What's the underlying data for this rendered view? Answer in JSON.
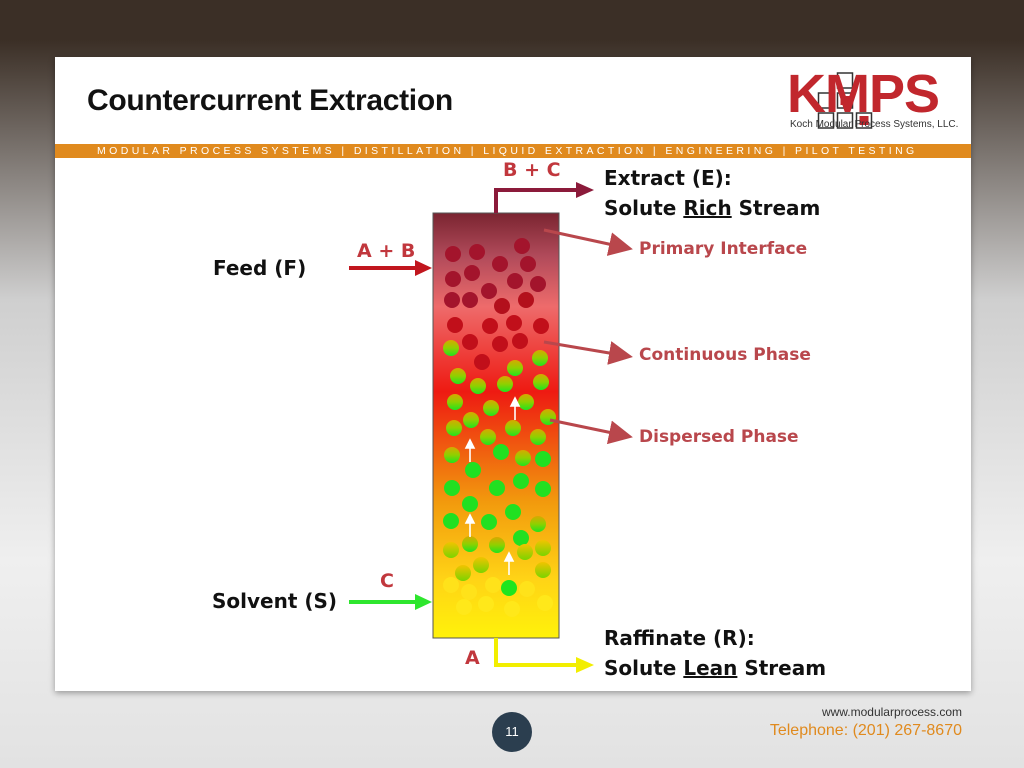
{
  "slide": {
    "title": "Countercurrent Extraction",
    "banner": "MODULAR PROCESS SYSTEMS | DISTILLATION | LIQUID EXTRACTION | ENGINEERING | PILOT TESTING",
    "logo": {
      "text": "KMPS",
      "subtitle": "Koch Modular Process Systems, LLC."
    },
    "footer": {
      "website": "www.modularprocess.com",
      "phone": "Telephone: (201) 267-8670",
      "page_number": "11"
    }
  },
  "diagram": {
    "streams": {
      "feed": {
        "label": "Feed (F)",
        "components": "A + B"
      },
      "solvent": {
        "label": "Solvent (S)",
        "components": "C"
      },
      "extract": {
        "label_line1": "Extract (E):",
        "line2_prefix": "Solute ",
        "line2_emph": "Rich",
        "line2_suffix": " Stream",
        "components": "B + C"
      },
      "raffinate": {
        "label_line1": "Raffinate (R):",
        "line2_prefix": "Solute ",
        "line2_emph": "Lean",
        "line2_suffix": " Stream",
        "components": "A"
      }
    },
    "annotations": {
      "primary_interface": "Primary Interface",
      "continuous_phase": "Continuous Phase",
      "dispersed_phase": "Dispersed Phase"
    },
    "colors": {
      "extract_stream": "#8b1a3a",
      "feed_stream": "#c1161e",
      "solvent_stream": "#2ee62e",
      "raffinate_stream": "#f2ee00",
      "annotation": "#b9474c"
    }
  }
}
